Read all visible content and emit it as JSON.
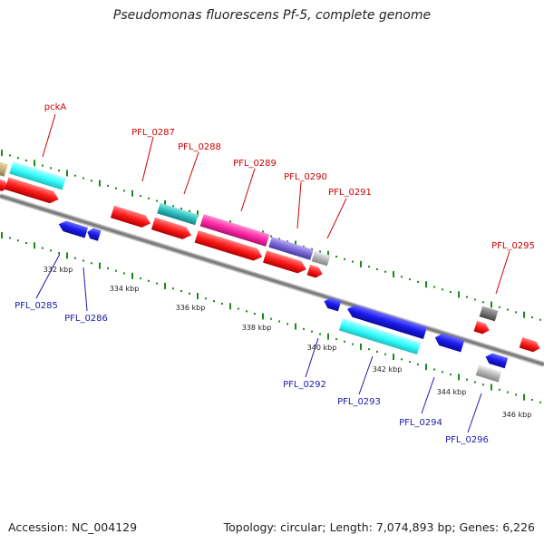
{
  "title": "Pseudomonas fluorescens Pf-5, complete genome",
  "accession": "Accession: NC_004129",
  "summary": "Topology: circular; Length: 7,074,893 bp; Genes: 6,226",
  "scale_labels": [
    "332 kbp",
    "334 kbp",
    "336 kbp",
    "338 kbp",
    "340 kbp",
    "342 kbp",
    "344 kbp",
    "346 kbp"
  ],
  "forward_gene_labels": [
    "pckA",
    "PFL_0287",
    "PFL_0288",
    "PFL_0289",
    "PFL_0290",
    "PFL_0291",
    "PFL_0295"
  ],
  "reverse_gene_labels": [
    "PFL_0285",
    "PFL_0286",
    "PFL_0292",
    "PFL_0293",
    "PFL_0294",
    "PFL_0296"
  ],
  "colors": {
    "forward_label": "#cc0000",
    "reverse_label": "#1a1aaa",
    "backbone": "#8a8a8a",
    "tick": "#1a8a1a",
    "cds_red": "#ff1a1a",
    "cds_blue": "#1a1aee",
    "cds_cyan": "#33ffff",
    "cds_teal": "#2bbfbf",
    "cds_magenta": "#ff2aa8",
    "cds_slate": "#7b68d8",
    "cds_grey": "#b5b5b5",
    "cds_darkgrey": "#777777",
    "cds_khaki": "#c8b07a"
  }
}
